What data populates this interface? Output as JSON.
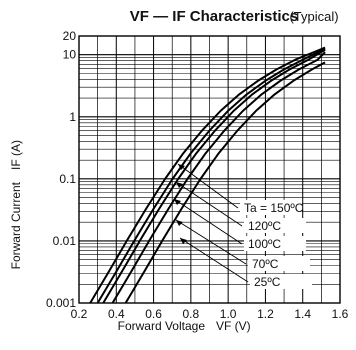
{
  "chart_data": {
    "type": "line",
    "title": "VF — IF  Characteristics",
    "title_note": "(Typical)",
    "xlabel": "Forward Voltage",
    "xlabel_symbol": "VF (V)",
    "ylabel": "Forward Current",
    "ylabel_symbol": "IF (A)",
    "xlim": [
      0.2,
      1.6
    ],
    "ylim": [
      0.001,
      20
    ],
    "y_scale": "log",
    "grid": true,
    "x_ticks": [
      "0.2",
      "0.4",
      "0.6",
      "0.8",
      "1.0",
      "1.2",
      "1.4",
      "1.6"
    ],
    "y_ticks": [
      "0.001",
      "0.01",
      "0.1",
      "1",
      "10",
      "20"
    ],
    "series": [
      {
        "name": "Ta = 150ºC",
        "x": [
          0.26,
          0.36,
          0.46,
          0.56,
          0.66,
          0.76,
          0.86,
          0.96,
          1.06,
          1.16,
          1.26,
          1.36,
          1.46,
          1.52
        ],
        "y": [
          0.001,
          0.0032,
          0.0105,
          0.033,
          0.098,
          0.26,
          0.6,
          1.25,
          2.3,
          3.8,
          5.8,
          8.3,
          11.0,
          13.0
        ]
      },
      {
        "name": "120ºC",
        "x": [
          0.3,
          0.4,
          0.5,
          0.6,
          0.7,
          0.8,
          0.9,
          1.0,
          1.1,
          1.2,
          1.3,
          1.4,
          1.52
        ],
        "y": [
          0.001,
          0.0032,
          0.0105,
          0.033,
          0.098,
          0.26,
          0.6,
          1.25,
          2.3,
          3.8,
          5.8,
          8.3,
          12.5
        ]
      },
      {
        "name": "100ºC",
        "x": [
          0.33,
          0.43,
          0.53,
          0.63,
          0.73,
          0.83,
          0.93,
          1.03,
          1.13,
          1.23,
          1.33,
          1.43,
          1.52
        ],
        "y": [
          0.001,
          0.0032,
          0.0105,
          0.033,
          0.098,
          0.26,
          0.6,
          1.25,
          2.3,
          3.8,
          5.8,
          8.3,
          12.0
        ]
      },
      {
        "name": "70ºC",
        "x": [
          0.38,
          0.48,
          0.58,
          0.68,
          0.78,
          0.88,
          0.98,
          1.08,
          1.18,
          1.28,
          1.38,
          1.48,
          1.52
        ],
        "y": [
          0.001,
          0.0032,
          0.0105,
          0.033,
          0.098,
          0.26,
          0.6,
          1.25,
          2.3,
          3.8,
          5.8,
          8.3,
          11.0
        ]
      },
      {
        "name": "25ºC",
        "x": [
          0.45,
          0.55,
          0.65,
          0.75,
          0.85,
          0.95,
          1.05,
          1.15,
          1.25,
          1.35,
          1.45,
          1.52
        ],
        "y": [
          0.001,
          0.0032,
          0.0105,
          0.033,
          0.098,
          0.26,
          0.6,
          1.25,
          2.3,
          3.8,
          5.8,
          7.5
        ]
      }
    ],
    "colors": {
      "line": "#000000",
      "grid": "#000000",
      "background": "#ffffff"
    }
  }
}
